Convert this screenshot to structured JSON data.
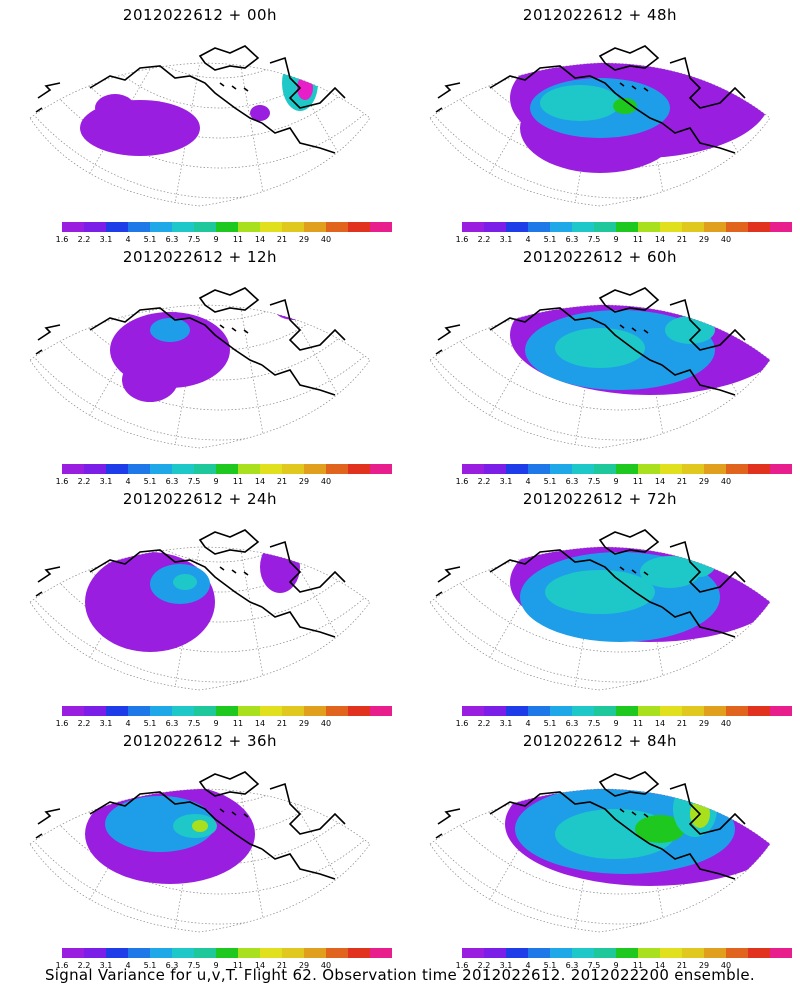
{
  "panels": [
    {
      "title": "2012022612 + 00h",
      "blobs": [
        [
          140,
          100,
          60,
          28,
          "#9a1ee0"
        ],
        [
          115,
          80,
          20,
          14,
          "#9a1ee0"
        ],
        [
          300,
          55,
          18,
          28,
          "#1ec8c8"
        ],
        [
          305,
          60,
          8,
          12,
          "#e81ec8"
        ],
        [
          260,
          85,
          10,
          8,
          "#9a1ee0"
        ]
      ]
    },
    {
      "title": "2012022612 + 48h",
      "blobs": [
        [
          240,
          70,
          130,
          60,
          "#9a1ee0"
        ],
        [
          200,
          100,
          80,
          45,
          "#9a1ee0"
        ],
        [
          200,
          80,
          70,
          30,
          "#1e9ee8"
        ],
        [
          180,
          75,
          40,
          18,
          "#1ec8c8"
        ],
        [
          225,
          78,
          12,
          8,
          "#1ec81e"
        ]
      ]
    },
    {
      "title": "2012022612 + 12h",
      "blobs": [
        [
          170,
          80,
          60,
          38,
          "#9a1ee0"
        ],
        [
          150,
          110,
          28,
          22,
          "#9a1ee0"
        ],
        [
          170,
          60,
          20,
          12,
          "#1e9ee8"
        ],
        [
          295,
          40,
          20,
          10,
          "#9a1ee0"
        ]
      ]
    },
    {
      "title": "2012022612 + 60h",
      "blobs": [
        [
          250,
          65,
          140,
          60,
          "#9a1ee0"
        ],
        [
          220,
          80,
          95,
          40,
          "#1e9ee8"
        ],
        [
          200,
          78,
          45,
          20,
          "#1ec8c8"
        ],
        [
          290,
          60,
          25,
          14,
          "#1ec8c8"
        ]
      ]
    },
    {
      "title": "2012022612 + 24h",
      "blobs": [
        [
          150,
          90,
          65,
          50,
          "#9a1ee0"
        ],
        [
          180,
          72,
          30,
          20,
          "#1e9ee8"
        ],
        [
          185,
          70,
          12,
          8,
          "#1ec8c8"
        ],
        [
          280,
          55,
          20,
          26,
          "#9a1ee0"
        ]
      ]
    },
    {
      "title": "2012022612 + 72h",
      "blobs": [
        [
          250,
          70,
          140,
          60,
          "#9a1ee0"
        ],
        [
          220,
          85,
          100,
          45,
          "#1e9ee8"
        ],
        [
          200,
          80,
          55,
          22,
          "#1ec8c8"
        ],
        [
          270,
          60,
          30,
          16,
          "#1ec8c8"
        ],
        [
          300,
          40,
          20,
          25,
          "#1ec8c8"
        ]
      ]
    },
    {
      "title": "2012022612 + 36h",
      "blobs": [
        [
          170,
          80,
          85,
          50,
          "#9a1ee0"
        ],
        [
          160,
          70,
          55,
          28,
          "#1e9ee8"
        ],
        [
          195,
          72,
          22,
          12,
          "#1ec8c8"
        ],
        [
          200,
          72,
          8,
          6,
          "#a8e01e"
        ]
      ]
    },
    {
      "title": "2012022612 + 84h",
      "blobs": [
        [
          250,
          70,
          145,
          62,
          "#9a1ee0"
        ],
        [
          225,
          75,
          110,
          45,
          "#1e9ee8"
        ],
        [
          215,
          80,
          60,
          25,
          "#1ec8c8"
        ],
        [
          260,
          75,
          25,
          14,
          "#1ec81e"
        ],
        [
          295,
          55,
          22,
          28,
          "#1ec8c8"
        ],
        [
          300,
          60,
          10,
          14,
          "#a8e01e"
        ]
      ]
    }
  ],
  "colorbar": {
    "labels": [
      "1.6",
      "2.2",
      "3.1",
      "4",
      "5.1",
      "6.3",
      "7.5",
      "9",
      "11",
      "14",
      "21",
      "29",
      "40"
    ],
    "colors": [
      "#9a1ee0",
      "#7a1ee8",
      "#1e3ce8",
      "#1e78e8",
      "#1ea8e8",
      "#1ec8c8",
      "#1ec89a",
      "#1ec81e",
      "#a8e01e",
      "#e0e01e",
      "#e0c81e",
      "#e0a01e",
      "#e0641e",
      "#e0321e",
      "#e81e8c"
    ]
  },
  "caption": "Signal Variance for u,v,T. Flight 62. Observation time 2012022612. 2012022200 ensemble."
}
